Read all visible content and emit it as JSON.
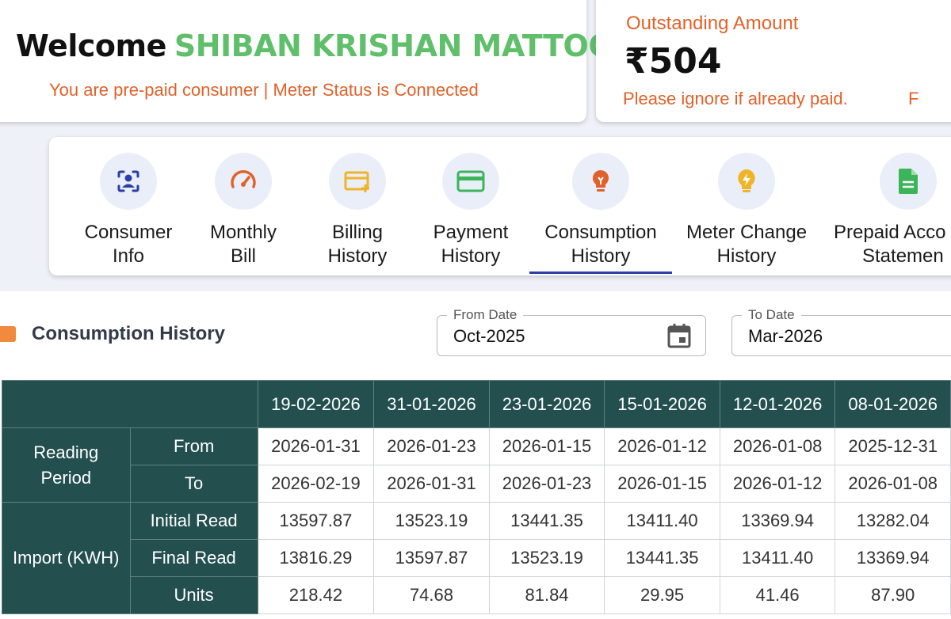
{
  "header": {
    "welcome_word": "Welcome",
    "consumer_name": "SHIBAN KRISHAN MATTOO",
    "status_text": "You are pre-paid consumer | Meter Status is Connected"
  },
  "outstanding": {
    "label": "Outstanding Amount",
    "amount": "₹504",
    "message": "Please ignore if already paid.",
    "message_cut": "F"
  },
  "nav": {
    "items": [
      {
        "line1": "Consumer",
        "line2": "Info",
        "icon": "user-scan-icon"
      },
      {
        "line1": "Monthly",
        "line2": "Bill",
        "icon": "speedometer-icon"
      },
      {
        "line1": "Billing",
        "line2": "History",
        "icon": "card-add-icon"
      },
      {
        "line1": "Payment",
        "line2": "History",
        "icon": "credit-card-icon"
      },
      {
        "line1": "Consumption",
        "line2": "History",
        "icon": "lightbulb-icon"
      },
      {
        "line1": "Meter Change",
        "line2": "History",
        "icon": "meter-bolt-icon"
      },
      {
        "line1": "Prepaid Acco",
        "line2": "Statemen",
        "icon": "document-icon"
      }
    ],
    "active": "Consumption History"
  },
  "section": {
    "title": "Consumption History"
  },
  "filters": {
    "from_label": "From Date",
    "from_value": "Oct-2025",
    "to_label": "To Date",
    "to_value": "Mar-2026"
  },
  "table": {
    "columns": [
      "19-02-2026",
      "31-01-2026",
      "23-01-2026",
      "15-01-2026",
      "12-01-2026",
      "08-01-2026"
    ],
    "reading_period_label": "Reading Period",
    "from_label": "From",
    "to_label": "To",
    "from": [
      "2026-01-31",
      "2026-01-23",
      "2026-01-15",
      "2026-01-12",
      "2026-01-08",
      "2025-12-31"
    ],
    "to": [
      "2026-02-19",
      "2026-01-31",
      "2026-01-23",
      "2026-01-15",
      "2026-01-12",
      "2026-01-08"
    ],
    "import_label": "Import (KWH)",
    "initial_read_label": "Initial Read",
    "final_read_label": "Final Read",
    "units_label": "Units",
    "initial_read": [
      "13597.87",
      "13523.19",
      "13441.35",
      "13411.40",
      "13369.94",
      "13282.04"
    ],
    "final_read": [
      "13816.29",
      "13597.87",
      "13523.19",
      "13441.35",
      "13411.40",
      "13369.94"
    ],
    "units": [
      "218.42",
      "74.68",
      "81.84",
      "29.95",
      "41.46",
      "87.90"
    ]
  },
  "colors": {
    "accent_orange": "#e0622a",
    "name_green": "#5fbf6a",
    "table_header": "#234f4f",
    "active_tab": "#2c3ea8"
  }
}
